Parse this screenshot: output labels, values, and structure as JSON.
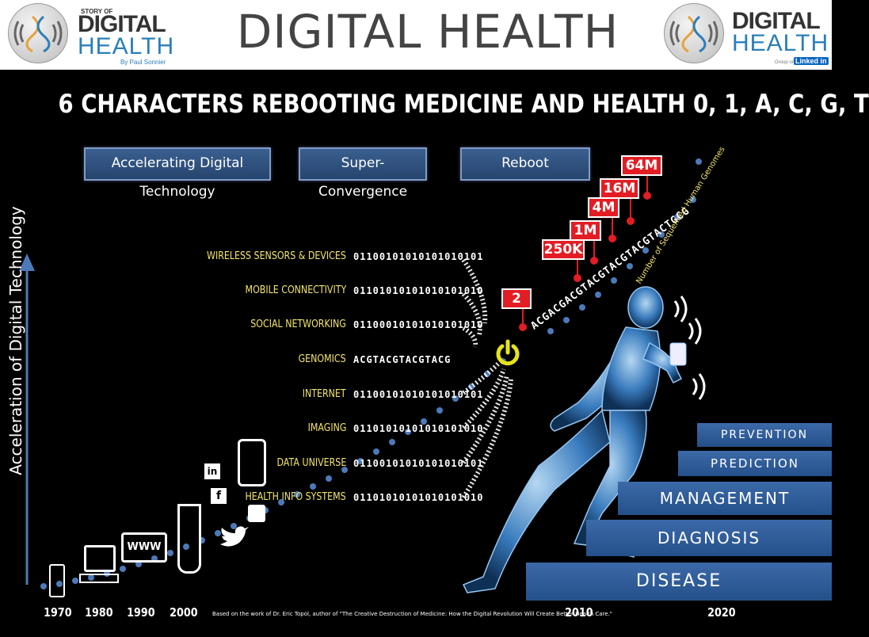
{
  "header": {
    "title": "DIGITAL HEALTH",
    "left_logo": {
      "story_of": "STORY OF",
      "digital": "DIGITAL",
      "health": "HEALTH",
      "byline": "By Paul Sonnier"
    },
    "right_logo": {
      "digital": "DIGITAL",
      "health": "HEALTH",
      "group_on": "Group on",
      "linkedin": "Linked in"
    }
  },
  "infographic": {
    "subtitle": "6 CHARACTERS REBOOTING MEDICINE AND HEALTH 0, 1, A, C, G, T",
    "banners": [
      "Accelerating Digital Technology",
      "Super-Convergence",
      "Reboot"
    ],
    "y_axis_label": "Acceleration of Digital Technology",
    "categories": [
      {
        "label": "WIRELESS SENSORS & DEVICES",
        "bits": "01100101010101010101"
      },
      {
        "label": "MOBILE CONNECTIVITY",
        "bits": "01101010101010101010"
      },
      {
        "label": "SOCIAL NETWORKING",
        "bits": "01100010101010101010"
      },
      {
        "label": "GENOMICS",
        "bits": "ACGTACGTACGTACG"
      },
      {
        "label": "INTERNET",
        "bits": "01100101010101010101"
      },
      {
        "label": "IMAGING",
        "bits": "01101010101010101010"
      },
      {
        "label": "DATA UNIVERSE",
        "bits": "01100101010101010101"
      },
      {
        "label": "HEALTH INFO SYSTEMS",
        "bits": "01101010101010101010"
      }
    ],
    "genome_counts": [
      "2",
      "250K",
      "1M",
      "4M",
      "16M",
      "64M"
    ],
    "genome_sequence": "ACGACGACGTACGTACGTACGTACTGCG",
    "genome_label": "Number of Sequenced Human Genomes",
    "years": [
      "1970",
      "1980",
      "1990",
      "2000",
      "2010",
      "2020"
    ],
    "credit": "Based on the work of Dr. Eric Topol, author of \"The Creative Destruction of Medicine: How the Digital Revolution Will Create Better Health Care.\"",
    "www_label": "WWW",
    "steps": [
      "PREVENTION",
      "PREDICTION",
      "MANAGEMENT",
      "DIAGNOSIS",
      "DISEASE"
    ],
    "colors": {
      "banner": "#2f5486",
      "label": "#f2e36e",
      "genome_red": "#e21d24",
      "step_blue": "#2e5c98",
      "power_yellow": "#e6e31e"
    }
  }
}
